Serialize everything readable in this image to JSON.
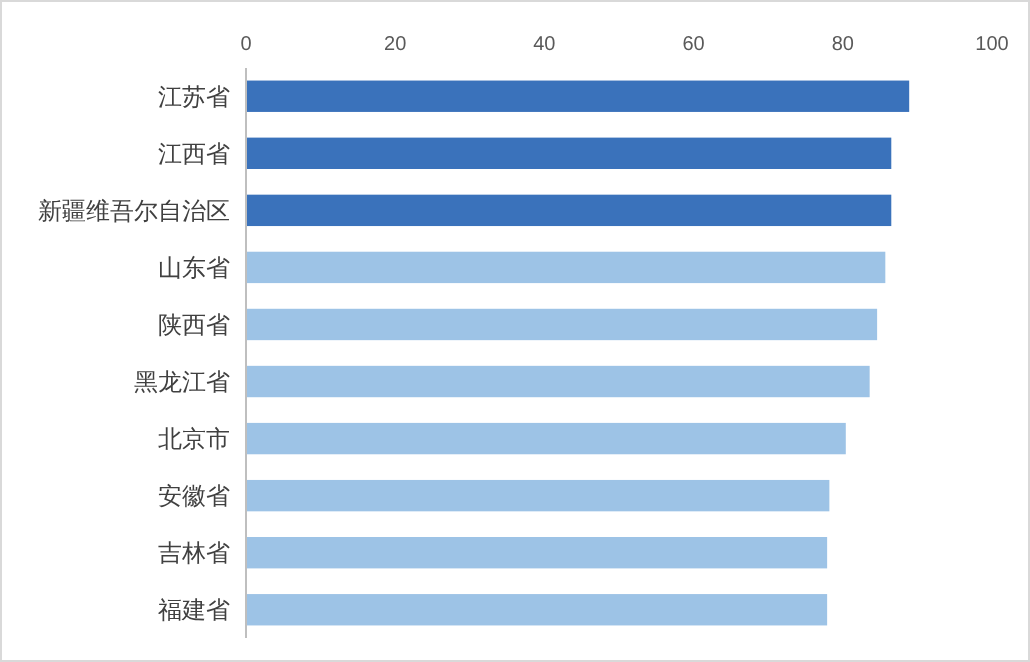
{
  "chart_data": {
    "type": "bar",
    "orientation": "horizontal",
    "categories": [
      "江苏省",
      "江西省",
      "新疆维吾尔自治区",
      "山东省",
      "陕西省",
      "黑龙江省",
      "北京市",
      "安徽省",
      "吉林省",
      "福建省"
    ],
    "values": [
      88.9,
      86.5,
      86.5,
      85.7,
      84.6,
      83.6,
      80.4,
      78.2,
      77.9,
      77.9
    ],
    "colors": [
      "#3a72bb",
      "#3a72bb",
      "#3a72bb",
      "#9dc3e6",
      "#9dc3e6",
      "#9dc3e6",
      "#9dc3e6",
      "#9dc3e6",
      "#9dc3e6",
      "#9dc3e6"
    ],
    "xlim": [
      0,
      100
    ],
    "xticks": [
      0,
      20,
      40,
      60,
      80,
      100
    ]
  }
}
